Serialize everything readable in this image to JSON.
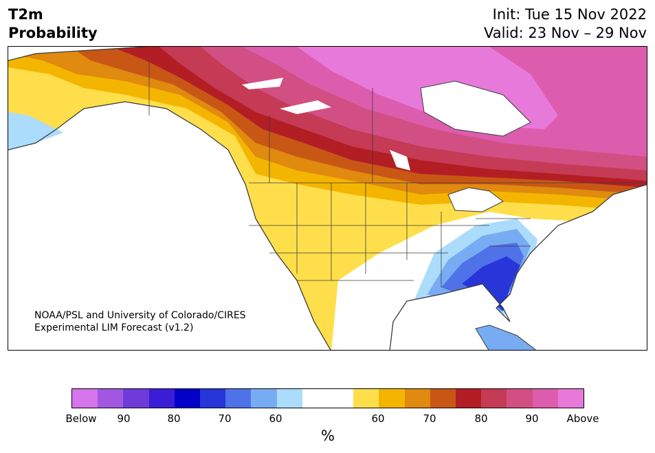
{
  "header": {
    "title_line1": "T2m",
    "title_line2": "Probability",
    "init": "Init: Tue 15 Nov 2022",
    "valid": "Valid: 23 Nov – 29 Nov"
  },
  "map": {
    "credit_line1": "NOAA/PSL and University of Colorado/CIRES",
    "credit_line2": "Experimental LIM Forecast (v1.2)",
    "colors": {
      "land_bg": "#ffffff",
      "water": "#ffffff",
      "outline": "#3a3a3a"
    }
  },
  "colorbar": {
    "unit": "%",
    "segments": [
      "#d575ec",
      "#a157e0",
      "#6f3bd8",
      "#3c1dd6",
      "#0300c8",
      "#2735d9",
      "#4f72e8",
      "#77acf2",
      "#acdcfc",
      "#ffffff",
      "#ffffff",
      "#fedf4b",
      "#f4b500",
      "#e08a0f",
      "#c85716",
      "#b31e24",
      "#c53a55",
      "#d24f83",
      "#dc5dae",
      "#e779da"
    ],
    "tick_labels": [
      "Below",
      "90",
      "80",
      "70",
      "60",
      "60",
      "70",
      "80",
      "90",
      "Above"
    ]
  }
}
